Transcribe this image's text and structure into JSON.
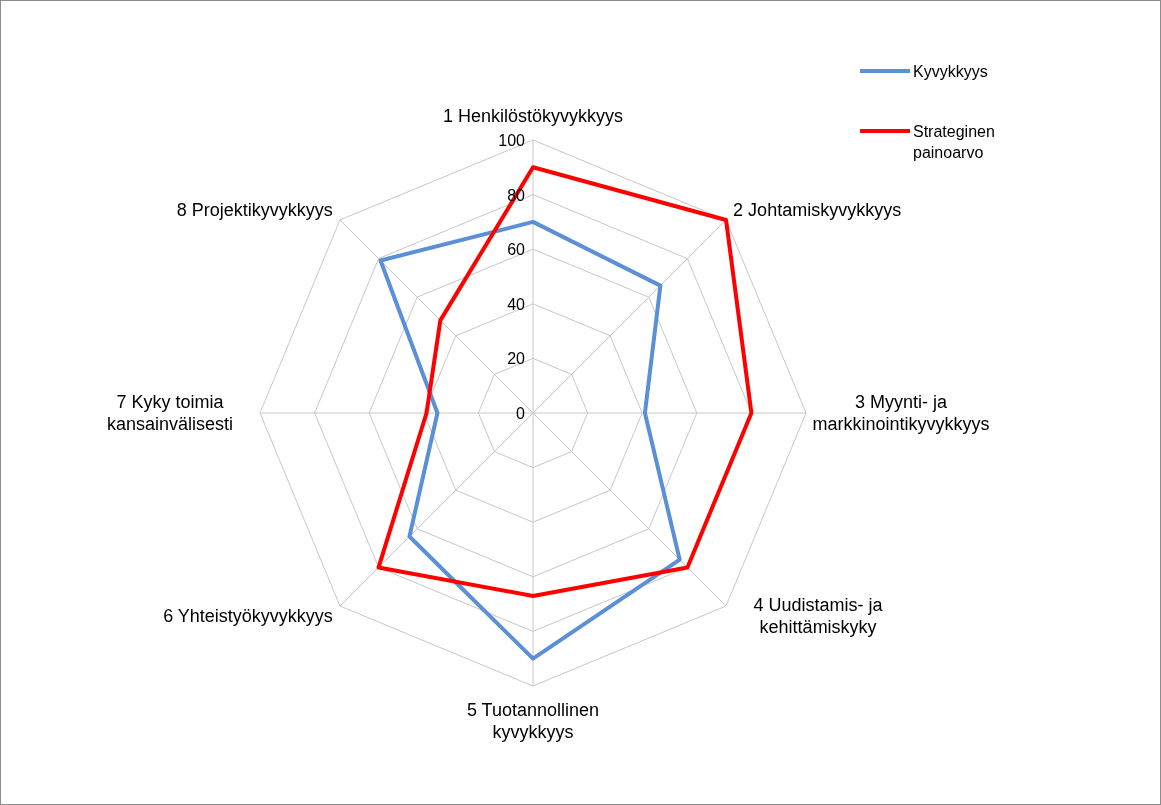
{
  "chart_data": {
    "type": "radar",
    "categories": [
      "1 Henkilöstökyvykkyys",
      "2 Johtamiskyvykkyys",
      "3 Myynti- ja markkinointikyvykkyys",
      "4 Uudistamis- ja kehittämiskyky",
      "5 Tuotannollinen kyvykkyys",
      "6 Yhteistyökyvykkyys",
      "7 Kyky toimia kansainvälisesti",
      "8 Projektikyvykkyys"
    ],
    "series": [
      {
        "name": "Kyvykkyys",
        "color": "#5b8fd6",
        "values": [
          70,
          66,
          41,
          76,
          90,
          64,
          35,
          79
        ]
      },
      {
        "name": "Strateginen painoarvo",
        "color": "#ff0000",
        "values": [
          90,
          100,
          80,
          80,
          67,
          80,
          39,
          48
        ]
      }
    ],
    "ylim": [
      0,
      100
    ],
    "yticks": [
      0,
      20,
      40,
      60,
      80,
      100
    ],
    "grid": true,
    "legend": "top right",
    "line_style": "solid",
    "marker": "none"
  }
}
